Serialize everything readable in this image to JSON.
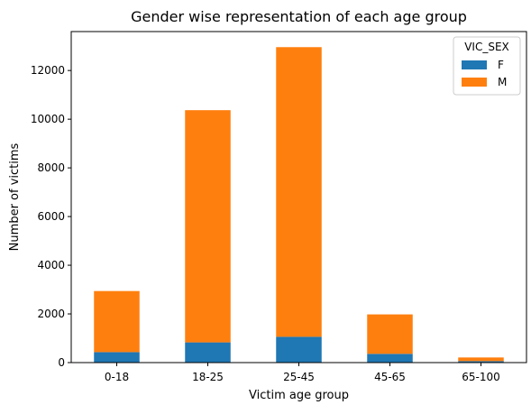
{
  "chart_data": {
    "type": "bar",
    "stacked": true,
    "title": "Gender wise representation of each age group",
    "xlabel": "Victim age group",
    "ylabel": "Number of victims",
    "categories": [
      "0-18",
      "18-25",
      "25-45",
      "45-65",
      "65-100"
    ],
    "series": [
      {
        "name": "F",
        "color": "#1f77b4",
        "values": [
          430,
          830,
          1060,
          360,
          60
        ]
      },
      {
        "name": "M",
        "color": "#ff7f0e",
        "values": [
          2510,
          9540,
          11900,
          1620,
          150
        ]
      }
    ],
    "ylim": [
      0,
      13600
    ],
    "yticks": [
      0,
      2000,
      4000,
      6000,
      8000,
      10000,
      12000
    ],
    "grid": false,
    "legend": {
      "title": "VIC_SEX",
      "position": "top-right"
    }
  }
}
